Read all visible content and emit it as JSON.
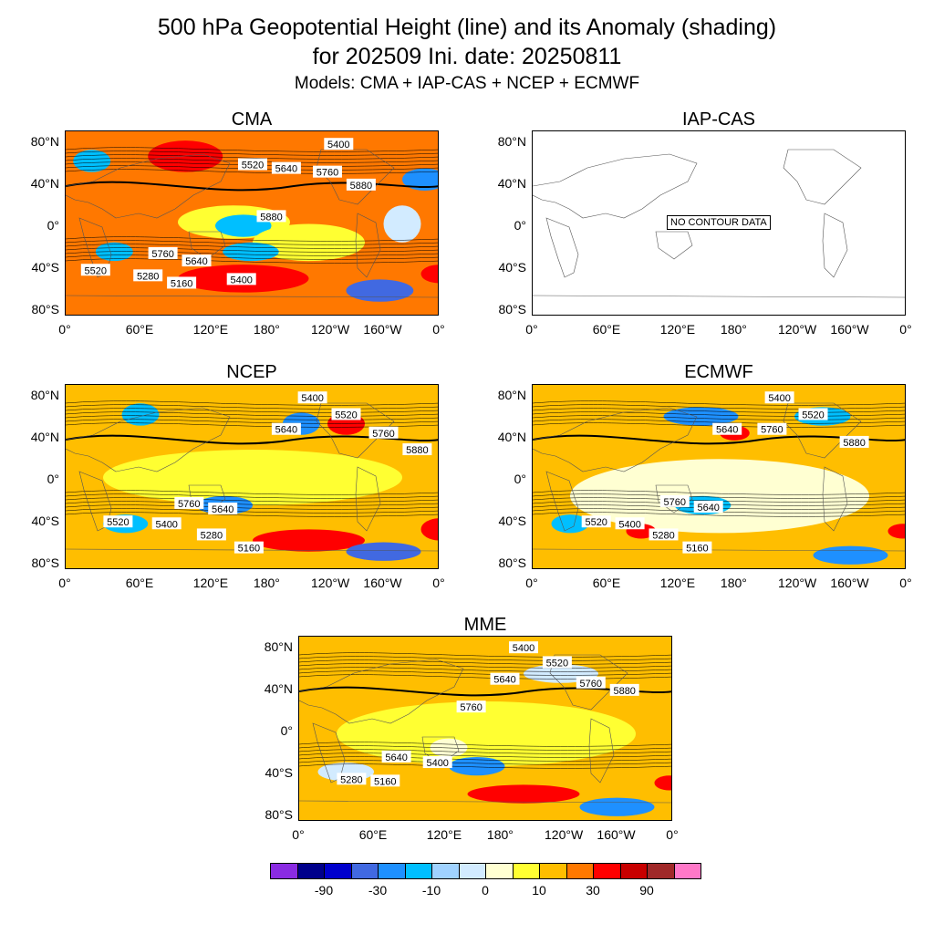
{
  "title_line1": "500 hPa Geopotential Height (line) and its Anomaly (shading)",
  "title_line2": "for 202509 Ini. date: 20250811",
  "title_line3": "Models: CMA + IAP-CAS + NCEP + ECMWF",
  "panels": [
    {
      "name": "CMA",
      "contour_labels": [
        "5400",
        "5520",
        "5640",
        "5760",
        "5880",
        "5880",
        "5760",
        "5640",
        "5520",
        "5280",
        "5160",
        "5400"
      ]
    },
    {
      "name": "IAP-CAS",
      "no_data_text": "NO CONTOUR DATA",
      "no_data_small": "NO CONTOUR DATA"
    },
    {
      "name": "NCEP",
      "contour_labels": [
        "5400",
        "5520",
        "5640",
        "5760",
        "5880",
        "5760",
        "5640",
        "5520",
        "5400",
        "5280",
        "5160"
      ]
    },
    {
      "name": "ECMWF",
      "contour_labels": [
        "5400",
        "5520",
        "5640",
        "5760",
        "5880",
        "5760",
        "5640",
        "5520",
        "5400",
        "5280",
        "5160"
      ]
    },
    {
      "name": "MME",
      "contour_labels": [
        "5400",
        "5520",
        "5640",
        "5760",
        "5880",
        "5760",
        "5640",
        "5400",
        "5280",
        "5160"
      ]
    }
  ],
  "lat_labels": [
    "80°N",
    "40°N",
    "0°",
    "40°S",
    "80°S"
  ],
  "lon_labels": [
    "0°",
    "60°E",
    "120°E",
    "180°",
    "120°W",
    "160°W",
    "0°"
  ],
  "colorbar": {
    "colors": [
      "#8a2be2",
      "#00008b",
      "#0000cd",
      "#4169e1",
      "#1e90ff",
      "#00bfff",
      "#a0d2ff",
      "#d2ebff",
      "#ffffd2",
      "#ffff32",
      "#ffbe00",
      "#ff7800",
      "#ff0000",
      "#c80000",
      "#a02828",
      "#ff78c8"
    ],
    "labels": [
      "-90",
      "-30",
      "-10",
      "0",
      "10",
      "30",
      "90"
    ]
  }
}
